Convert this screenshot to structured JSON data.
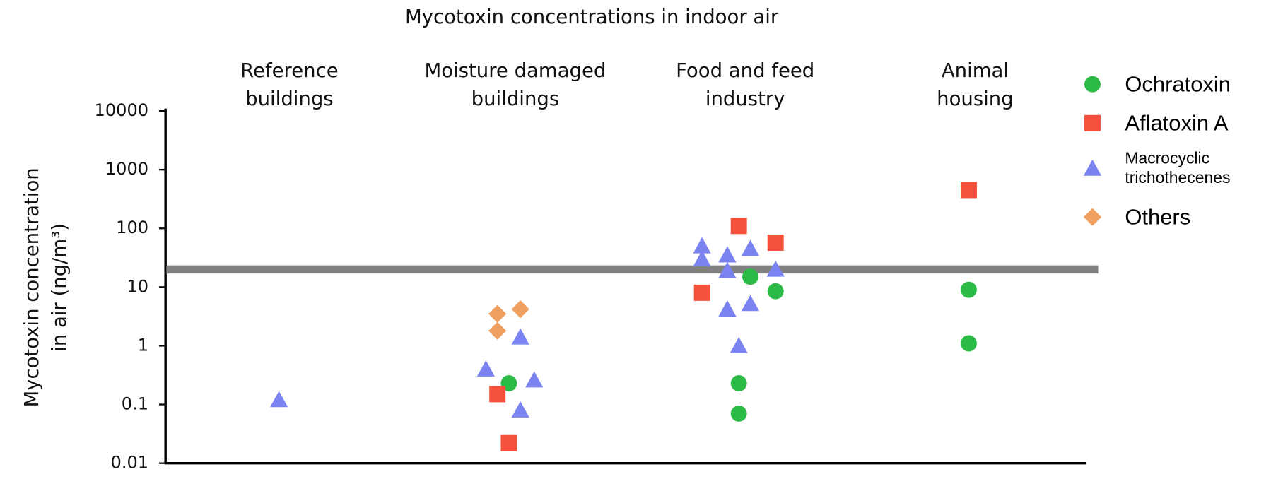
{
  "chart_data": {
    "type": "scatter",
    "title": "Mycotoxin concentrations in indoor air",
    "categories": [
      [
        "Reference",
        "buildings"
      ],
      [
        "Moisture damaged",
        "buildings"
      ],
      [
        "Food and feed",
        "industry"
      ],
      [
        "Animal",
        "housing"
      ]
    ],
    "ylabel": [
      "Mycotoxin concentration",
      "in air (ng/m³)"
    ],
    "log_y": true,
    "xlim": [
      0,
      4
    ],
    "ylim": [
      0.01,
      10000
    ],
    "yticks": [
      0.01,
      0.1,
      1,
      10,
      100,
      1000,
      10000
    ],
    "threshold": 20,
    "threshold_color": "#808080",
    "legend": "right",
    "series": [
      {
        "name": "Ochratoxin",
        "color": "#2dbb48",
        "marker": "circle",
        "x": [
          1.49,
          2.54,
          2.65,
          2.49,
          2.49,
          3.49,
          3.49
        ],
        "values": [
          0.23,
          15,
          8.5,
          0.23,
          0.07,
          9,
          1.1
        ]
      },
      {
        "name": "Aflatoxin A",
        "color": "#f4503c",
        "marker": "square",
        "x": [
          1.44,
          1.49,
          2.49,
          2.65,
          2.33,
          3.49
        ],
        "values": [
          0.15,
          0.022,
          110,
          57,
          8,
          450
        ]
      },
      {
        "name": "Macrocyclic trichothecenes",
        "color": "#7b83f0",
        "marker": "triangle",
        "x": [
          0.49,
          1.39,
          1.54,
          1.6,
          1.54,
          2.33,
          2.33,
          2.44,
          2.44,
          2.54,
          2.65,
          2.44,
          2.54,
          2.49
        ],
        "values": [
          0.12,
          0.4,
          1.4,
          0.26,
          0.08,
          50,
          30,
          35,
          19,
          45,
          20,
          4.2,
          5.2,
          1.0
        ]
      },
      {
        "name": "Others",
        "color": "#f0a060",
        "marker": "diamond",
        "x": [
          1.44,
          1.44,
          1.54
        ],
        "values": [
          3.5,
          1.8,
          4.2
        ]
      }
    ]
  }
}
